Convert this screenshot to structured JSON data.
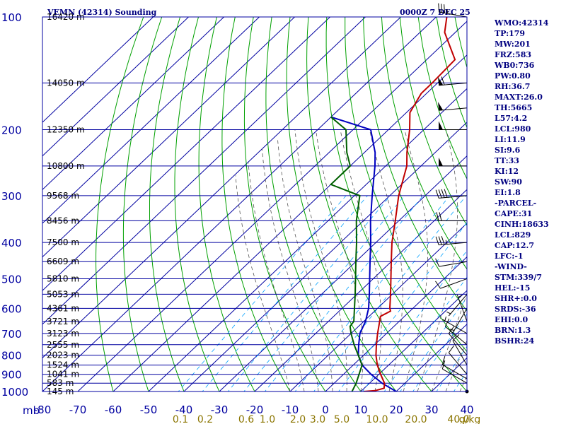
{
  "header": {
    "station_title": "VEMN (42314) Sounding",
    "valid_time": "0000Z  7 DEC 25"
  },
  "chart_data": {
    "type": "skew-t",
    "pressure_levels": [
      100,
      200,
      300,
      400,
      500,
      600,
      700,
      800,
      900,
      1000
    ],
    "pressure_axis_unit": "mb",
    "height_labels": [
      {
        "p": 100,
        "label": "16420 m"
      },
      {
        "p": 150,
        "label": "14050 m"
      },
      {
        "p": 200,
        "label": "12350 m"
      },
      {
        "p": 250,
        "label": "10800 m"
      },
      {
        "p": 300,
        "label": "9568 m"
      },
      {
        "p": 350,
        "label": "8456 m"
      },
      {
        "p": 400,
        "label": "7500 m"
      },
      {
        "p": 450,
        "label": "6609 m"
      },
      {
        "p": 500,
        "label": "5810 m"
      },
      {
        "p": 550,
        "label": "5053 m"
      },
      {
        "p": 600,
        "label": "4361 m"
      },
      {
        "p": 650,
        "label": "3721 m"
      },
      {
        "p": 700,
        "label": "3123 m"
      },
      {
        "p": 750,
        "label": "2555 m"
      },
      {
        "p": 800,
        "label": "2023 m"
      },
      {
        "p": 850,
        "label": "1524 m"
      },
      {
        "p": 900,
        "label": "1041 m"
      },
      {
        "p": 950,
        "label": "583 m"
      },
      {
        "p": 1000,
        "label": "145 m"
      }
    ],
    "temperature_ticks": [
      "-80",
      "-70",
      "-60",
      "-50",
      "-40",
      "-30",
      "-20",
      "-10",
      "0",
      "10",
      "20",
      "30",
      "40"
    ],
    "mixing_ratio_labels": [
      "0.1",
      "0.2",
      "0.6",
      "1.0",
      "2.0",
      "3.0",
      "5.0",
      "10.0",
      "20.0",
      "40.0"
    ],
    "mixing_ratio_unit": "g/kg",
    "temperature_profile": [
      {
        "p": 1000,
        "t": 10.8
      },
      {
        "p": 995,
        "t": 13.8
      },
      {
        "p": 980,
        "t": 15.6
      },
      {
        "p": 950,
        "t": 14.2
      },
      {
        "p": 900,
        "t": 10.5
      },
      {
        "p": 850,
        "t": 6.8
      },
      {
        "p": 800,
        "t": 3.5
      },
      {
        "p": 750,
        "t": 0.5
      },
      {
        "p": 700,
        "t": -2.5
      },
      {
        "p": 650,
        "t": -5.5
      },
      {
        "p": 630,
        "t": -6.8
      },
      {
        "p": 610,
        "t": -5.5
      },
      {
        "p": 600,
        "t": -6.5
      },
      {
        "p": 550,
        "t": -10.5
      },
      {
        "p": 500,
        "t": -15.0
      },
      {
        "p": 450,
        "t": -20.0
      },
      {
        "p": 400,
        "t": -25.5
      },
      {
        "p": 350,
        "t": -31.0
      },
      {
        "p": 300,
        "t": -37.5
      },
      {
        "p": 250,
        "t": -44.0
      },
      {
        "p": 230,
        "t": -48.0
      },
      {
        "p": 200,
        "t": -54.0
      },
      {
        "p": 180,
        "t": -59.0
      },
      {
        "p": 160,
        "t": -61.5
      },
      {
        "p": 150,
        "t": -61.5
      },
      {
        "p": 130,
        "t": -62.0
      },
      {
        "p": 110,
        "t": -73.0
      },
      {
        "p": 100,
        "t": -77.0
      }
    ],
    "dewpoint_profile": [
      {
        "p": 1000,
        "t": 7.5
      },
      {
        "p": 980,
        "t": 7.0
      },
      {
        "p": 950,
        "t": 6.2
      },
      {
        "p": 900,
        "t": 4.4
      },
      {
        "p": 850,
        "t": 2.5
      },
      {
        "p": 800,
        "t": -1.5
      },
      {
        "p": 750,
        "t": -5.8
      },
      {
        "p": 700,
        "t": -10.0
      },
      {
        "p": 670,
        "t": -12.4
      },
      {
        "p": 650,
        "t": -12.8
      },
      {
        "p": 600,
        "t": -16.5
      },
      {
        "p": 550,
        "t": -20.5
      },
      {
        "p": 500,
        "t": -25.0
      },
      {
        "p": 450,
        "t": -30.0
      },
      {
        "p": 400,
        "t": -35.5
      },
      {
        "p": 350,
        "t": -42.0
      },
      {
        "p": 300,
        "t": -48.5
      },
      {
        "p": 280,
        "t": -60.0
      },
      {
        "p": 250,
        "t": -60.0
      },
      {
        "p": 230,
        "t": -65.0
      },
      {
        "p": 200,
        "t": -72.0
      },
      {
        "p": 185,
        "t": -80.0
      }
    ],
    "parcel_profile": [
      {
        "p": 1000,
        "t": 20.0
      },
      {
        "p": 950,
        "t": 13.5
      },
      {
        "p": 900,
        "t": 7.8
      },
      {
        "p": 850,
        "t": 2.5
      },
      {
        "p": 800,
        "t": -1.5
      },
      {
        "p": 750,
        "t": -4.5
      },
      {
        "p": 700,
        "t": -7.5
      },
      {
        "p": 650,
        "t": -9.5
      },
      {
        "p": 600,
        "t": -12.5
      },
      {
        "p": 550,
        "t": -16.5
      },
      {
        "p": 500,
        "t": -21.0
      },
      {
        "p": 450,
        "t": -26.0
      },
      {
        "p": 400,
        "t": -31.5
      },
      {
        "p": 350,
        "t": -38.0
      },
      {
        "p": 300,
        "t": -45.0
      },
      {
        "p": 250,
        "t": -53.0
      },
      {
        "p": 230,
        "t": -57.0
      },
      {
        "p": 200,
        "t": -65.0
      },
      {
        "p": 185,
        "t": -80.0
      }
    ],
    "wind_barbs": [
      {
        "p": 1000,
        "dir": 270,
        "spd": 0
      },
      {
        "p": 950,
        "dir": 300,
        "spd": 10
      },
      {
        "p": 925,
        "dir": 300,
        "spd": 10
      },
      {
        "p": 900,
        "dir": 320,
        "spd": 10
      },
      {
        "p": 850,
        "dir": 330,
        "spd": 10
      },
      {
        "p": 800,
        "dir": 320,
        "spd": 10
      },
      {
        "p": 750,
        "dir": 310,
        "spd": 10
      },
      {
        "p": 700,
        "dir": 300,
        "spd": 5
      },
      {
        "p": 650,
        "dir": 340,
        "spd": 5
      },
      {
        "p": 600,
        "dir": 210,
        "spd": 5
      },
      {
        "p": 550,
        "dir": 220,
        "spd": 5
      },
      {
        "p": 500,
        "dir": 250,
        "spd": 10
      },
      {
        "p": 450,
        "dir": 260,
        "spd": 10
      },
      {
        "p": 400,
        "dir": 265,
        "spd": 35
      },
      {
        "p": 350,
        "dir": 270,
        "spd": 20
      },
      {
        "p": 300,
        "dir": 265,
        "spd": 40
      },
      {
        "p": 250,
        "dir": 270,
        "spd": 50
      },
      {
        "p": 200,
        "dir": 270,
        "spd": 50
      },
      {
        "p": 175,
        "dir": 265,
        "spd": 50
      },
      {
        "p": 150,
        "dir": 265,
        "spd": 60
      },
      {
        "p": 100,
        "dir": 280,
        "spd": 35
      }
    ]
  },
  "indices": [
    "WMO:42314",
    "TP:179",
    "MW:201",
    "FRZ:583",
    "WB0:736",
    "PW:0.80",
    "RH:36.7",
    "MAXT:26.0",
    "TH:5665",
    "L57:4.2",
    "LCL:980",
    "LI:11.9",
    "SI:9.6",
    "TT:33",
    "KI:12",
    "SW:90",
    "EI:1.8",
    "-PARCEL-",
    "CAPE:31",
    "CINH:18633",
    "LCL:829",
    "CAP:12.7",
    "LFC:-1",
    "-WIND-",
    "STM:339/7",
    "HEL:-15",
    "SHR+:0.0",
    "SRDS:-36",
    "EHI:0.0",
    "BRN:1.3",
    "BSHR:24"
  ],
  "colors": {
    "isobar": "#0000a0",
    "isotherm": "#0000a0",
    "dry_adiabat": "#00a000",
    "moist_adiabat": "#555555",
    "mixing_ratio": "#00a0ff",
    "temperature": "#c00000",
    "dewpoint": "#006000",
    "parcel": "#0000c0",
    "wind": "#000000"
  }
}
